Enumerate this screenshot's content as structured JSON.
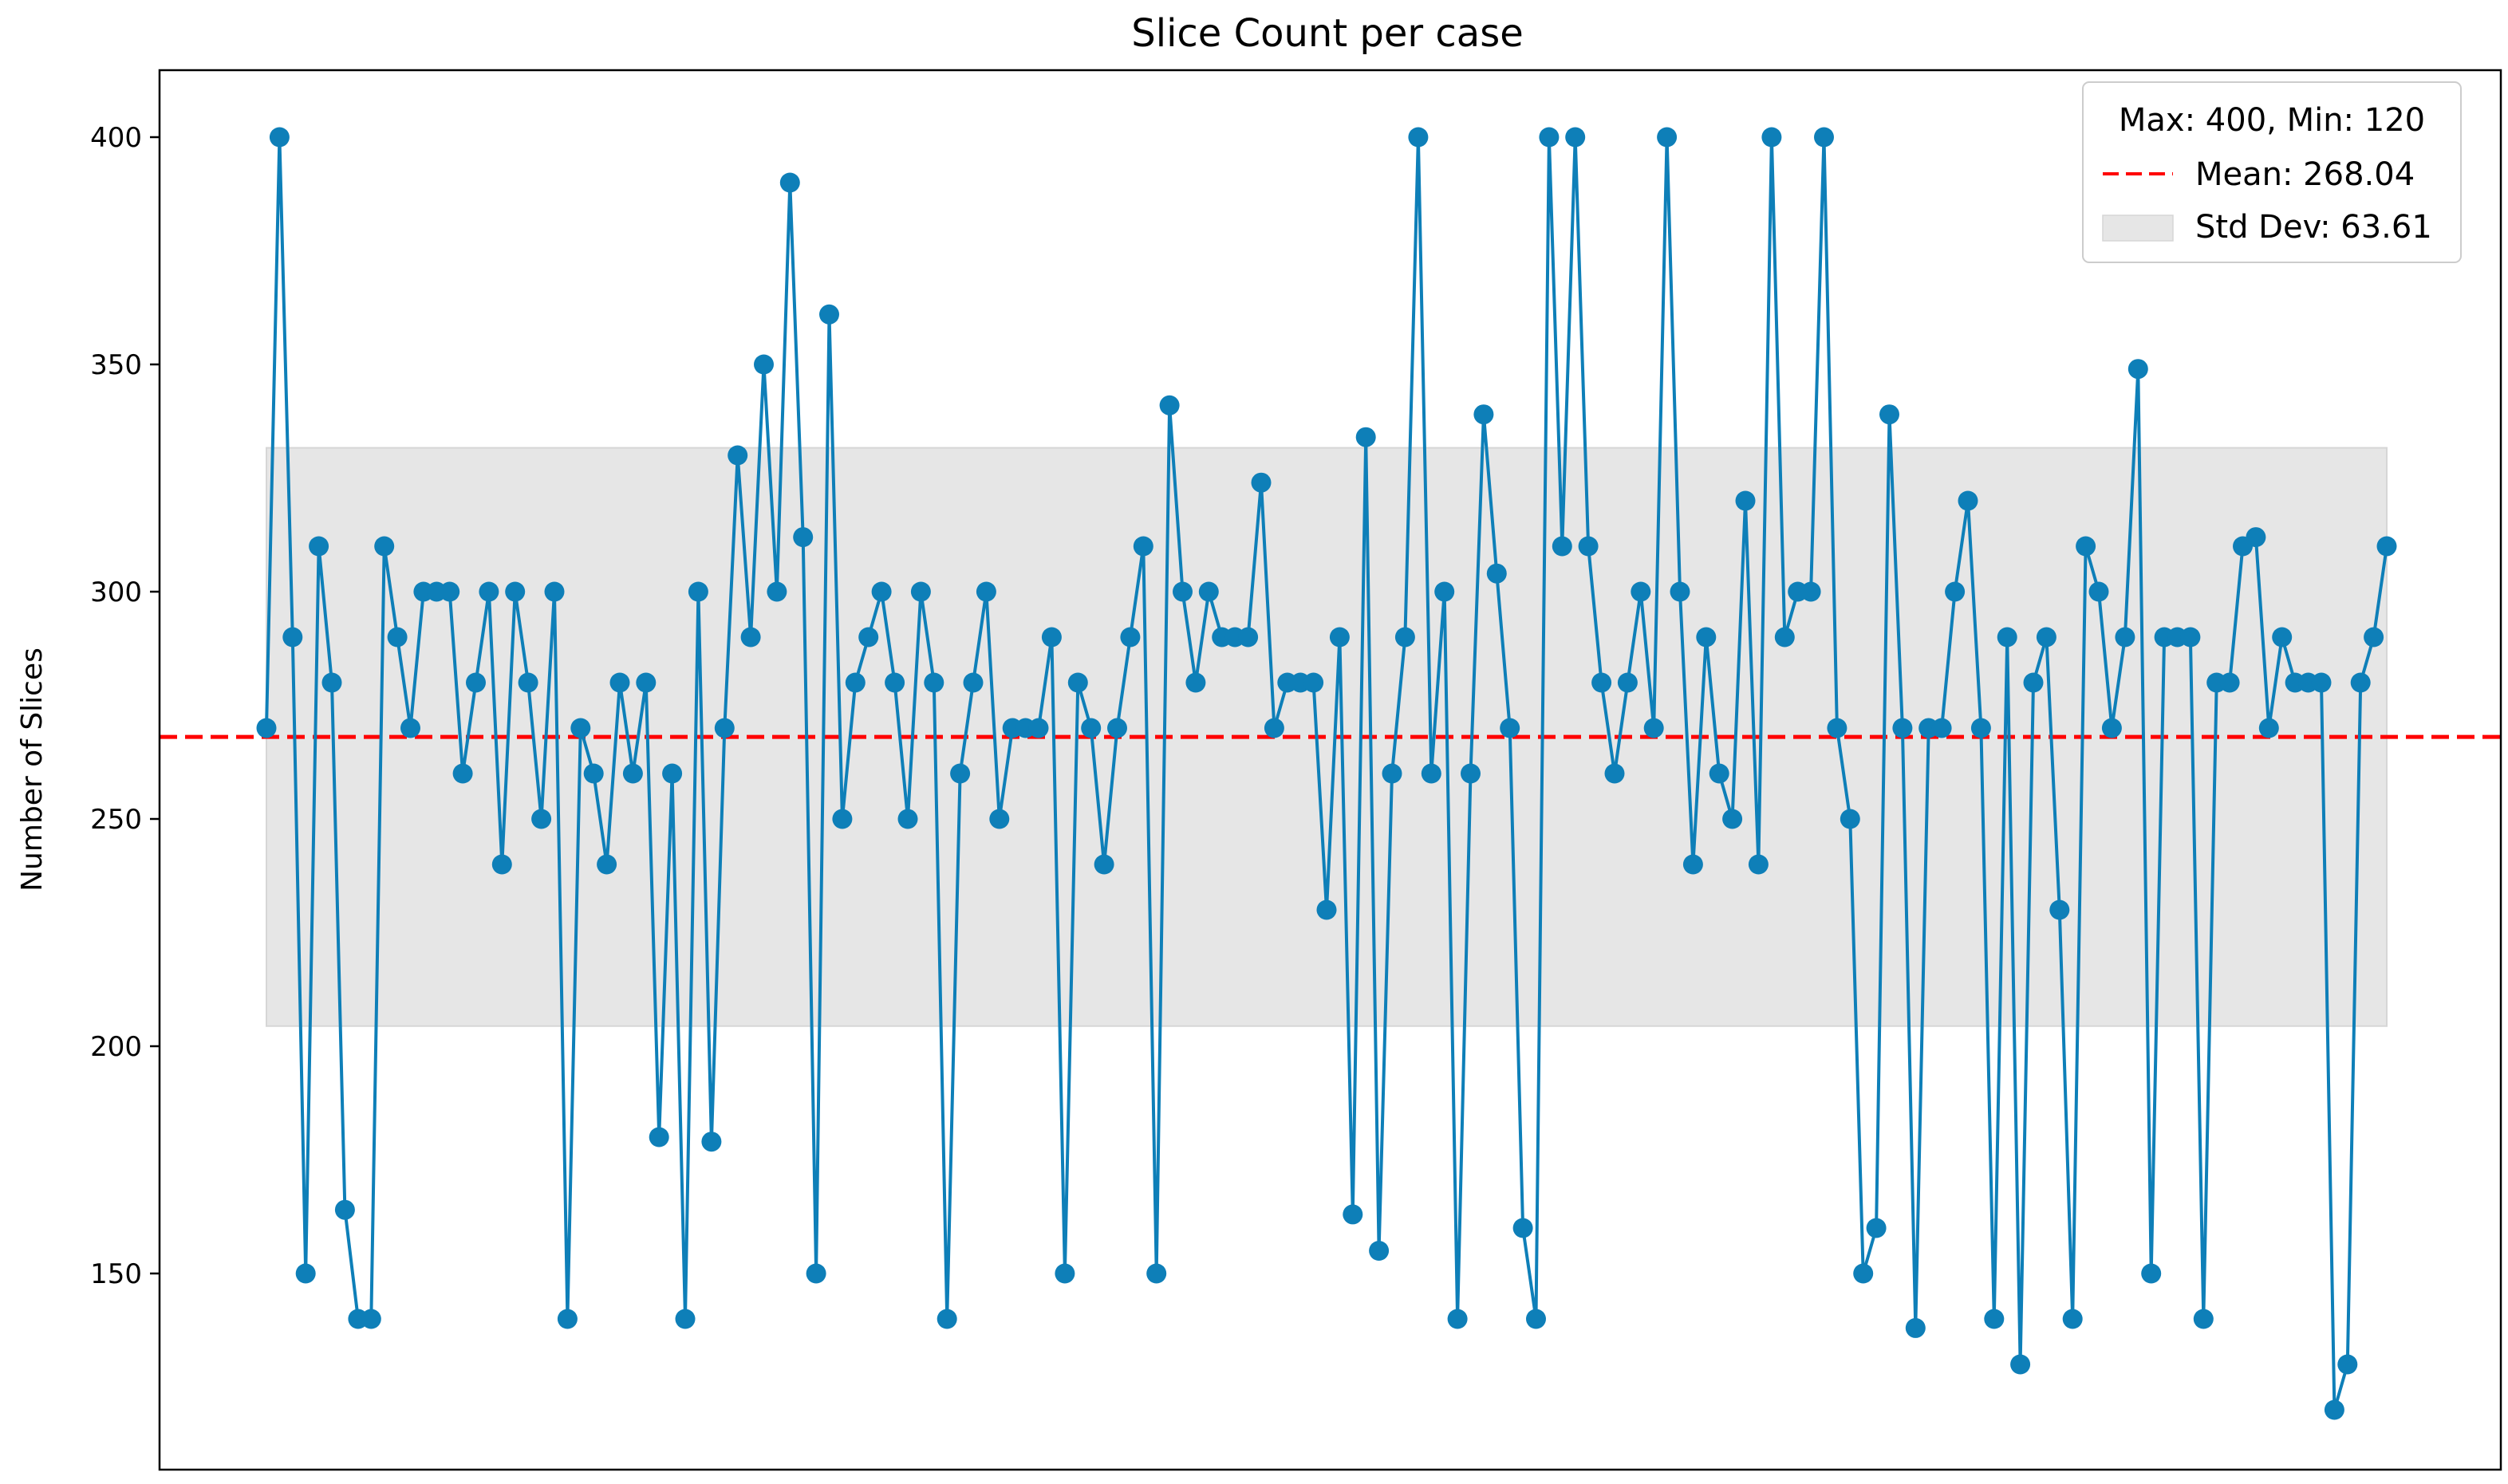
{
  "chart_data": {
    "type": "line",
    "title": "Slice Count per case",
    "xlabel": "",
    "ylabel": "Number of Slices",
    "ylim": [
      105,
      415
    ],
    "y_ticks": [
      150,
      200,
      250,
      300,
      350,
      400
    ],
    "x_ticks_visible": false,
    "grid": false,
    "legend_position": "top-right",
    "series": [
      {
        "name": "Slice Count",
        "marker": "circle",
        "values": [
          270,
          400,
          290,
          150,
          310,
          280,
          164,
          140,
          140,
          310,
          290,
          270,
          300,
          300,
          300,
          260,
          280,
          300,
          240,
          300,
          280,
          250,
          300,
          140,
          270,
          260,
          240,
          280,
          260,
          280,
          180,
          260,
          140,
          300,
          179,
          270,
          330,
          290,
          350,
          300,
          390,
          312,
          150,
          361,
          250,
          280,
          290,
          300,
          280,
          250,
          300,
          280,
          140,
          260,
          280,
          300,
          250,
          270,
          270,
          270,
          290,
          150,
          280,
          270,
          240,
          270,
          290,
          310,
          150,
          341,
          300,
          280,
          300,
          290,
          290,
          290,
          324,
          270,
          280,
          280,
          280,
          230,
          290,
          163,
          334,
          155,
          260,
          290,
          400,
          260,
          300,
          140,
          260,
          339,
          304,
          270,
          160,
          140,
          400,
          310,
          400,
          310,
          280,
          260,
          280,
          300,
          270,
          400,
          300,
          240,
          290,
          260,
          250,
          320,
          240,
          400,
          290,
          300,
          300,
          400,
          270,
          250,
          150,
          160,
          339,
          270,
          138,
          270,
          270,
          300,
          320,
          270,
          140,
          290,
          130,
          280,
          290,
          230,
          140,
          310,
          300,
          270,
          290,
          349,
          150,
          290,
          290,
          290,
          140,
          280,
          280,
          310,
          312,
          270,
          290,
          280,
          280,
          280,
          120,
          130,
          280,
          290,
          310
        ]
      }
    ],
    "mean": 268.04,
    "std_dev": 63.61,
    "max": 400,
    "min": 120,
    "legend": {
      "stats_label": "Max: 400, Min: 120",
      "mean_label": "Mean: 268.04",
      "std_label": "Std Dev: 63.61"
    },
    "colors": {
      "line": "#0e7fb8",
      "mean": "#ff0000",
      "band": "#e6e6e6",
      "band_edge": "#d6d6d6"
    }
  }
}
